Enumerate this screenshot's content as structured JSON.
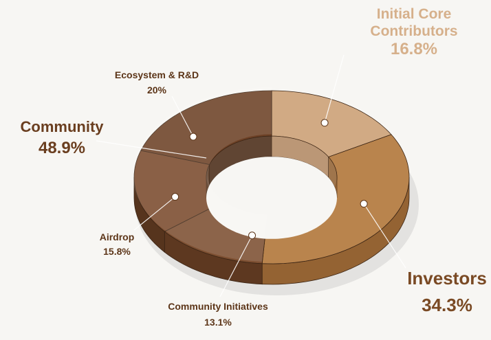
{
  "chart_data": {
    "type": "pie",
    "style": "3d-donut",
    "slices": [
      {
        "name": "Initial Core Contributors",
        "value": 16.8,
        "color": "#d1aa84",
        "side_color": "#b58b64"
      },
      {
        "name": "Investors",
        "value": 34.3,
        "color": "#b9844d",
        "side_color": "#946333"
      },
      {
        "name": "Community Initiatives",
        "value": 13.1,
        "color": "#7d4f31",
        "side_color": "#5d3820"
      },
      {
        "name": "Airdrop",
        "value": 15.8,
        "color": "#7a4b2d",
        "side_color": "#56341d"
      },
      {
        "name": "Ecosystem & R&D",
        "value": 20,
        "color": "#6d4126",
        "side_color": "#4a2a15"
      }
    ],
    "group": {
      "name": "Community",
      "value": 48.9,
      "members": [
        "Community Initiatives",
        "Airdrop",
        "Ecosystem & R&D"
      ]
    },
    "labels": {
      "initial_core": {
        "line1": "Initial Core",
        "line2": "Contributors",
        "pct": "16.8%",
        "color": "#d6b08b"
      },
      "investors": {
        "name": "Investors",
        "pct": "34.3%",
        "color": "#7a4a24"
      },
      "community": {
        "name": "Community",
        "pct": "48.9%",
        "color": "#6a3e1f"
      },
      "ecosystem": {
        "name": "Ecosystem & R&D",
        "pct": "20%",
        "color": "#5c3518"
      },
      "airdrop": {
        "name": "Airdrop",
        "pct": "15.8%",
        "color": "#5c3518"
      },
      "initiatives": {
        "name": "Community Initiatives",
        "pct": "13.1%",
        "color": "#5c3518"
      }
    }
  }
}
